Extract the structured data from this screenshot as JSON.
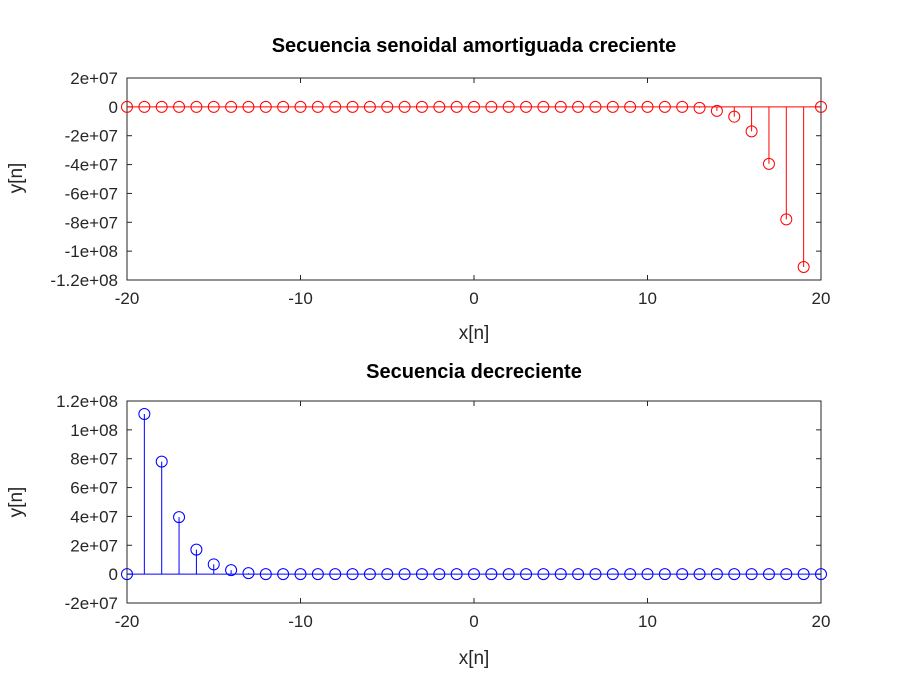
{
  "chart_data": [
    {
      "type": "stem",
      "title": "Secuencia senoidal amortiguada creciente",
      "xlabel": "x[n]",
      "ylabel": "y[n]",
      "xlim": [
        -20,
        20
      ],
      "ylim": [
        -120000000,
        20000000
      ],
      "xticks": [
        -20,
        -10,
        0,
        10,
        20
      ],
      "xtick_labels": [
        "-20",
        "-10",
        "0",
        "10",
        "20"
      ],
      "yticks": [
        20000000,
        0,
        -20000000,
        -40000000,
        -60000000,
        -80000000,
        -100000000,
        -120000000
      ],
      "ytick_labels": [
        "2e+07",
        "0",
        "-2e+07",
        "-4e+07",
        "-6e+07",
        "-8e+07",
        "-1e+08",
        "-1.2e+08"
      ],
      "color": "#ff0000",
      "x": [
        -20,
        -19,
        -18,
        -17,
        -16,
        -15,
        -14,
        -13,
        -12,
        -11,
        -10,
        -9,
        -8,
        -7,
        -6,
        -5,
        -4,
        -3,
        -2,
        -1,
        0,
        1,
        2,
        3,
        4,
        5,
        6,
        7,
        8,
        9,
        10,
        11,
        12,
        13,
        14,
        15,
        16,
        17,
        18,
        19,
        20
      ],
      "y": [
        0,
        0,
        0,
        0,
        0,
        0,
        0,
        0,
        0,
        0,
        0,
        0,
        0,
        0,
        0,
        0,
        0,
        0,
        0,
        0,
        0,
        0,
        0,
        0,
        0,
        0,
        0,
        0,
        0,
        0,
        0,
        0,
        0,
        -700000,
        -2800000,
        -6800000,
        -17000000,
        -39500000,
        -78000000,
        -111000000,
        0
      ]
    },
    {
      "type": "stem",
      "title": "Secuencia decreciente",
      "xlabel": "x[n]",
      "ylabel": "y[n]",
      "xlim": [
        -20,
        20
      ],
      "ylim": [
        -20000000,
        120000000
      ],
      "xticks": [
        -20,
        -10,
        0,
        10,
        20
      ],
      "xtick_labels": [
        "-20",
        "-10",
        "0",
        "10",
        "20"
      ],
      "yticks": [
        120000000,
        100000000,
        80000000,
        60000000,
        40000000,
        20000000,
        0,
        -20000000
      ],
      "ytick_labels": [
        "1.2e+08",
        "1e+08",
        "8e+07",
        "6e+07",
        "4e+07",
        "2e+07",
        "0",
        "-2e+07"
      ],
      "color": "#0000ff",
      "x": [
        -20,
        -19,
        -18,
        -17,
        -16,
        -15,
        -14,
        -13,
        -12,
        -11,
        -10,
        -9,
        -8,
        -7,
        -6,
        -5,
        -4,
        -3,
        -2,
        -1,
        0,
        1,
        2,
        3,
        4,
        5,
        6,
        7,
        8,
        9,
        10,
        11,
        12,
        13,
        14,
        15,
        16,
        17,
        18,
        19,
        20
      ],
      "y": [
        0,
        111000000,
        78000000,
        39500000,
        17000000,
        6800000,
        2800000,
        700000,
        0,
        0,
        0,
        0,
        0,
        0,
        0,
        0,
        0,
        0,
        0,
        0,
        0,
        0,
        0,
        0,
        0,
        0,
        0,
        0,
        0,
        0,
        0,
        0,
        0,
        0,
        0,
        0,
        0,
        0,
        0,
        0,
        0
      ]
    }
  ]
}
